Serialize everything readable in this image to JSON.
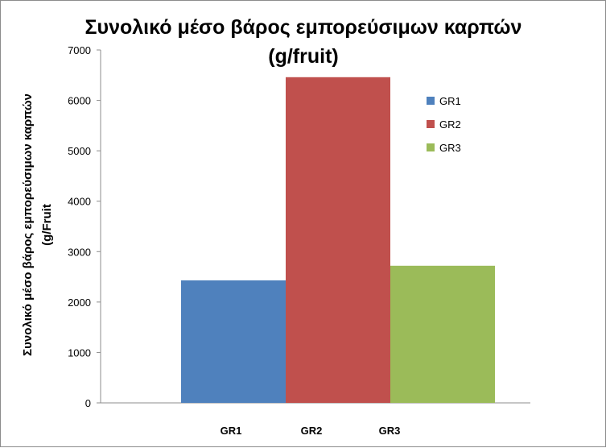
{
  "chart_data": {
    "type": "bar",
    "title_lines": [
      "Συνολικό μέσο βάρος εμπορεύσιμων καρπών",
      "(g/fruit)"
    ],
    "ylabel_lines": [
      "Συνολικό μέσο βάρος εμπορεύσιμων καρπών",
      "(g/Fruit"
    ],
    "xlabel": "",
    "categories": [
      "GR1",
      "GR2",
      "GR3"
    ],
    "values": [
      2430,
      6460,
      2720
    ],
    "colors": [
      "#4f81bd",
      "#c0504d",
      "#9bbb59"
    ],
    "legend": [
      "GR1",
      "GR2",
      "GR3"
    ],
    "legend_position": "right",
    "ylim": [
      0,
      7000
    ],
    "yticks": [
      0,
      1000,
      2000,
      3000,
      4000,
      5000,
      6000,
      7000
    ],
    "grid": false
  }
}
